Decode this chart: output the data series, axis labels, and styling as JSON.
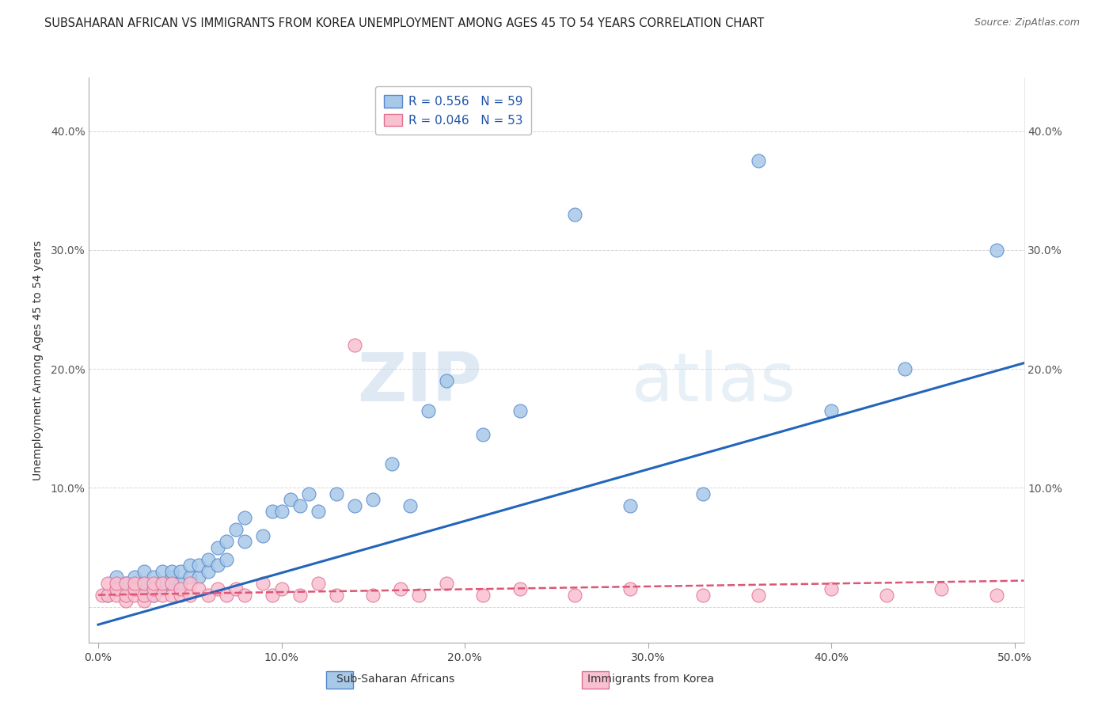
{
  "title": "SUBSAHARAN AFRICAN VS IMMIGRANTS FROM KOREA UNEMPLOYMENT AMONG AGES 45 TO 54 YEARS CORRELATION CHART",
  "source": "Source: ZipAtlas.com",
  "ylabel": "Unemployment Among Ages 45 to 54 years",
  "xlim": [
    -0.005,
    0.505
  ],
  "ylim": [
    -0.03,
    0.445
  ],
  "xticks": [
    0.0,
    0.1,
    0.2,
    0.3,
    0.4,
    0.5
  ],
  "yticks": [
    0.0,
    0.1,
    0.2,
    0.3,
    0.4
  ],
  "xtick_labels": [
    "0.0%",
    "10.0%",
    "20.0%",
    "30.0%",
    "40.0%",
    "50.0%"
  ],
  "ytick_labels": [
    "",
    "10.0%",
    "20.0%",
    "30.0%",
    "40.0%"
  ],
  "right_ytick_labels": [
    "",
    "10.0%",
    "20.0%",
    "30.0%",
    "40.0%"
  ],
  "watermark_zip": "ZIP",
  "watermark_atlas": "atlas",
  "blue_color": "#a8c8e8",
  "blue_edge_color": "#5588cc",
  "pink_color": "#f8c0d0",
  "pink_edge_color": "#e07090",
  "blue_line_color": "#2266bb",
  "pink_line_color": "#dd5577",
  "legend_label1": "R = 0.556   N = 59",
  "legend_label2": "R = 0.046   N = 53",
  "legend_text_color": "#2255aa",
  "background_color": "#ffffff",
  "grid_color": "#cccccc",
  "title_fontsize": 10.5,
  "axis_fontsize": 10,
  "tick_fontsize": 10,
  "blue_x": [
    0.005,
    0.01,
    0.01,
    0.015,
    0.015,
    0.02,
    0.02,
    0.02,
    0.025,
    0.025,
    0.025,
    0.025,
    0.03,
    0.03,
    0.03,
    0.035,
    0.035,
    0.035,
    0.04,
    0.04,
    0.04,
    0.045,
    0.045,
    0.05,
    0.05,
    0.055,
    0.055,
    0.06,
    0.06,
    0.065,
    0.065,
    0.07,
    0.07,
    0.075,
    0.08,
    0.08,
    0.09,
    0.095,
    0.1,
    0.105,
    0.11,
    0.115,
    0.12,
    0.13,
    0.14,
    0.15,
    0.16,
    0.17,
    0.18,
    0.19,
    0.21,
    0.23,
    0.26,
    0.29,
    0.33,
    0.36,
    0.4,
    0.44,
    0.49
  ],
  "blue_y": [
    0.01,
    0.015,
    0.025,
    0.01,
    0.02,
    0.015,
    0.02,
    0.025,
    0.01,
    0.015,
    0.02,
    0.03,
    0.01,
    0.015,
    0.025,
    0.015,
    0.02,
    0.03,
    0.02,
    0.025,
    0.03,
    0.02,
    0.03,
    0.025,
    0.035,
    0.025,
    0.035,
    0.03,
    0.04,
    0.035,
    0.05,
    0.04,
    0.055,
    0.065,
    0.055,
    0.075,
    0.06,
    0.08,
    0.08,
    0.09,
    0.085,
    0.095,
    0.08,
    0.095,
    0.085,
    0.09,
    0.12,
    0.085,
    0.165,
    0.19,
    0.145,
    0.165,
    0.33,
    0.085,
    0.095,
    0.375,
    0.165,
    0.2,
    0.3
  ],
  "pink_x": [
    0.002,
    0.005,
    0.005,
    0.01,
    0.01,
    0.01,
    0.015,
    0.015,
    0.015,
    0.02,
    0.02,
    0.02,
    0.025,
    0.025,
    0.025,
    0.03,
    0.03,
    0.03,
    0.035,
    0.035,
    0.04,
    0.04,
    0.045,
    0.045,
    0.05,
    0.05,
    0.055,
    0.06,
    0.065,
    0.07,
    0.075,
    0.08,
    0.09,
    0.095,
    0.1,
    0.11,
    0.12,
    0.13,
    0.14,
    0.15,
    0.165,
    0.175,
    0.19,
    0.21,
    0.23,
    0.26,
    0.29,
    0.33,
    0.36,
    0.4,
    0.43,
    0.46,
    0.49
  ],
  "pink_y": [
    0.01,
    0.01,
    0.02,
    0.01,
    0.015,
    0.02,
    0.005,
    0.01,
    0.02,
    0.01,
    0.015,
    0.02,
    0.005,
    0.01,
    0.02,
    0.01,
    0.015,
    0.02,
    0.01,
    0.02,
    0.01,
    0.02,
    0.01,
    0.015,
    0.01,
    0.02,
    0.015,
    0.01,
    0.015,
    0.01,
    0.015,
    0.01,
    0.02,
    0.01,
    0.015,
    0.01,
    0.02,
    0.01,
    0.22,
    0.01,
    0.015,
    0.01,
    0.02,
    0.01,
    0.015,
    0.01,
    0.015,
    0.01,
    0.01,
    0.015,
    0.01,
    0.015,
    0.01
  ],
  "blue_trend_x0": 0.0,
  "blue_trend_y0": -0.015,
  "blue_trend_x1": 0.505,
  "blue_trend_y1": 0.205,
  "pink_trend_x0": 0.0,
  "pink_trend_y0": 0.01,
  "pink_trend_x1": 0.505,
  "pink_trend_y1": 0.022
}
